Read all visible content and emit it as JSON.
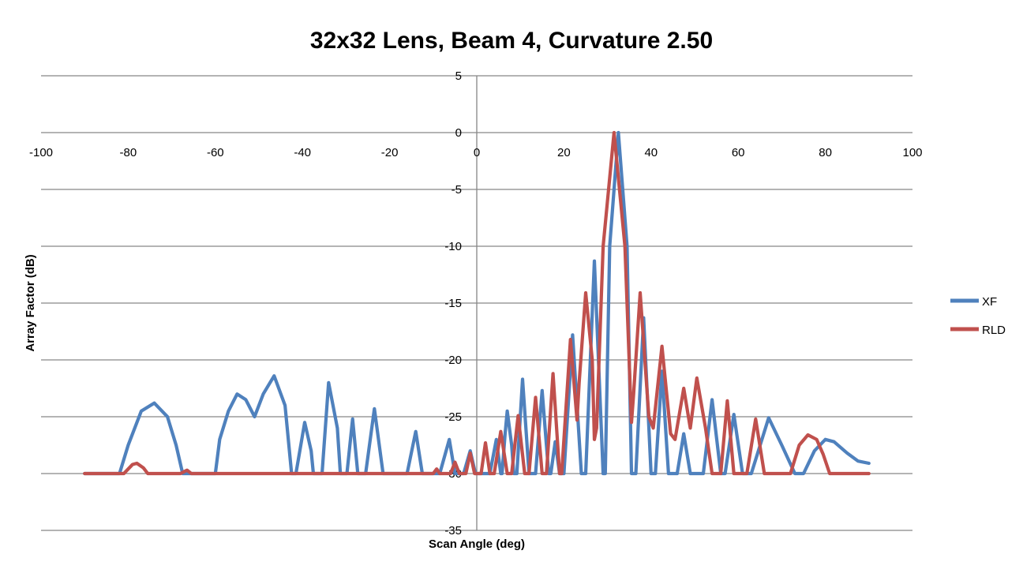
{
  "chart_data": {
    "type": "line",
    "title": "32x32 Lens, Beam 4, Curvature 2.50",
    "xlabel": "Scan Angle (deg)",
    "ylabel": "Array Factor (dB)",
    "xlim": [
      -100,
      100
    ],
    "ylim": [
      -35,
      5
    ],
    "x_ticks": [
      -100,
      -80,
      -60,
      -40,
      -20,
      0,
      20,
      40,
      60,
      80,
      100
    ],
    "y_ticks": [
      5,
      0,
      -5,
      -10,
      -15,
      -20,
      -25,
      -30,
      -35
    ],
    "grid": "horizontal",
    "legend_position": "right",
    "series": [
      {
        "name": "XF",
        "color": "#4F81BD",
        "points": [
          [
            -90,
            -30
          ],
          [
            -82,
            -30
          ],
          [
            -80,
            -27.5
          ],
          [
            -77,
            -24.5
          ],
          [
            -74,
            -23.8
          ],
          [
            -71,
            -25
          ],
          [
            -69,
            -27.5
          ],
          [
            -67.5,
            -30
          ],
          [
            -66,
            -30
          ],
          [
            -60,
            -30
          ],
          [
            -59,
            -27
          ],
          [
            -57,
            -24.5
          ],
          [
            -55,
            -23
          ],
          [
            -53,
            -23.5
          ],
          [
            -51,
            -25
          ],
          [
            -49,
            -23
          ],
          [
            -46.5,
            -21.4
          ],
          [
            -44,
            -24
          ],
          [
            -42.5,
            -30
          ],
          [
            -41.5,
            -30
          ],
          [
            -39.5,
            -25.5
          ],
          [
            -38,
            -28
          ],
          [
            -37.5,
            -30
          ],
          [
            -35.5,
            -30
          ],
          [
            -34,
            -22
          ],
          [
            -32,
            -26
          ],
          [
            -31.3,
            -30
          ],
          [
            -29.8,
            -30
          ],
          [
            -28.5,
            -25.2
          ],
          [
            -27.3,
            -30
          ],
          [
            -25.5,
            -30
          ],
          [
            -23.5,
            -24.3
          ],
          [
            -21.5,
            -30
          ],
          [
            -16,
            -30
          ],
          [
            -14,
            -26.3
          ],
          [
            -12.5,
            -30
          ],
          [
            -8.5,
            -30
          ],
          [
            -6.3,
            -27
          ],
          [
            -5,
            -30
          ],
          [
            -3,
            -30
          ],
          [
            -1.5,
            -28
          ],
          [
            -0.3,
            -30
          ],
          [
            3,
            -30
          ],
          [
            4.5,
            -27
          ],
          [
            5.5,
            -30
          ],
          [
            5.8,
            -30
          ],
          [
            6.5,
            -26.5
          ],
          [
            7,
            -24.5
          ],
          [
            8,
            -27.5
          ],
          [
            8.5,
            -30
          ],
          [
            9.2,
            -30
          ],
          [
            10.5,
            -21.7
          ],
          [
            12,
            -30
          ],
          [
            13.5,
            -30
          ],
          [
            15,
            -22.7
          ],
          [
            16.5,
            -30
          ],
          [
            17,
            -30
          ],
          [
            18,
            -27.2
          ],
          [
            19,
            -30
          ],
          [
            20,
            -30
          ],
          [
            22,
            -17.8
          ],
          [
            24,
            -30
          ],
          [
            25,
            -30
          ],
          [
            27,
            -11.3
          ],
          [
            29,
            -30
          ],
          [
            29.5,
            -30
          ],
          [
            30.5,
            -10
          ],
          [
            32.5,
            0
          ],
          [
            34.5,
            -10
          ],
          [
            35.5,
            -30
          ],
          [
            36.5,
            -30
          ],
          [
            38.3,
            -16.3
          ],
          [
            40,
            -30
          ],
          [
            41,
            -30
          ],
          [
            42.5,
            -21
          ],
          [
            44,
            -30
          ],
          [
            46,
            -30
          ],
          [
            47.5,
            -26.5
          ],
          [
            49,
            -30
          ],
          [
            52,
            -30
          ],
          [
            54,
            -23.5
          ],
          [
            56,
            -30
          ],
          [
            57,
            -30
          ],
          [
            59,
            -24.8
          ],
          [
            61,
            -30
          ],
          [
            63,
            -30
          ],
          [
            67,
            -25.1
          ],
          [
            70,
            -27.5
          ],
          [
            73,
            -30
          ],
          [
            75,
            -30
          ],
          [
            77.5,
            -28
          ],
          [
            80,
            -27
          ],
          [
            82,
            -27.2
          ],
          [
            85,
            -28.2
          ],
          [
            87.5,
            -28.9
          ],
          [
            90,
            -29.1
          ]
        ]
      },
      {
        "name": "RLD",
        "color": "#C0504D",
        "points": [
          [
            -90,
            -30
          ],
          [
            -81,
            -30
          ],
          [
            -79,
            -29.2
          ],
          [
            -78,
            -29.1
          ],
          [
            -76.5,
            -29.5
          ],
          [
            -75.5,
            -30
          ],
          [
            -68,
            -30
          ],
          [
            -66.5,
            -29.7
          ],
          [
            -65.5,
            -30
          ],
          [
            -50,
            -30
          ],
          [
            -10,
            -30
          ],
          [
            -9.2,
            -29.6
          ],
          [
            -8.5,
            -30
          ],
          [
            -6,
            -30
          ],
          [
            -5,
            -29
          ],
          [
            -4,
            -30
          ],
          [
            -2.5,
            -30
          ],
          [
            -1.5,
            -28.2
          ],
          [
            -0.5,
            -30
          ],
          [
            1,
            -30
          ],
          [
            2,
            -27.3
          ],
          [
            3,
            -30
          ],
          [
            4,
            -30
          ],
          [
            5.5,
            -26.3
          ],
          [
            7,
            -30
          ],
          [
            8,
            -30
          ],
          [
            9.5,
            -24.9
          ],
          [
            11,
            -30
          ],
          [
            12,
            -30
          ],
          [
            13.5,
            -23.3
          ],
          [
            15,
            -30
          ],
          [
            16,
            -30
          ],
          [
            17.5,
            -21.2
          ],
          [
            19,
            -30
          ],
          [
            19.5,
            -30
          ],
          [
            21.5,
            -18.2
          ],
          [
            23,
            -25.3
          ],
          [
            23.5,
            -22
          ],
          [
            25,
            -14.1
          ],
          [
            26.5,
            -20
          ],
          [
            27,
            -27
          ],
          [
            27.5,
            -26
          ],
          [
            29,
            -10
          ],
          [
            31.5,
            0
          ],
          [
            34,
            -10
          ],
          [
            35.5,
            -25.5
          ],
          [
            36,
            -23
          ],
          [
            37.5,
            -14.1
          ],
          [
            39.5,
            -25
          ],
          [
            40.5,
            -26
          ],
          [
            42.5,
            -18.8
          ],
          [
            44.5,
            -26.5
          ],
          [
            45.5,
            -27
          ],
          [
            47.5,
            -22.5
          ],
          [
            49,
            -26
          ],
          [
            50.5,
            -21.6
          ],
          [
            52.5,
            -26
          ],
          [
            54,
            -30
          ],
          [
            56,
            -30
          ],
          [
            57.5,
            -23.6
          ],
          [
            59,
            -30
          ],
          [
            62,
            -30
          ],
          [
            64,
            -25.2
          ],
          [
            66,
            -30
          ],
          [
            72,
            -30
          ],
          [
            74,
            -27.5
          ],
          [
            76,
            -26.6
          ],
          [
            78,
            -27
          ],
          [
            79.5,
            -28.3
          ],
          [
            81,
            -30
          ],
          [
            90,
            -30
          ]
        ]
      }
    ]
  }
}
